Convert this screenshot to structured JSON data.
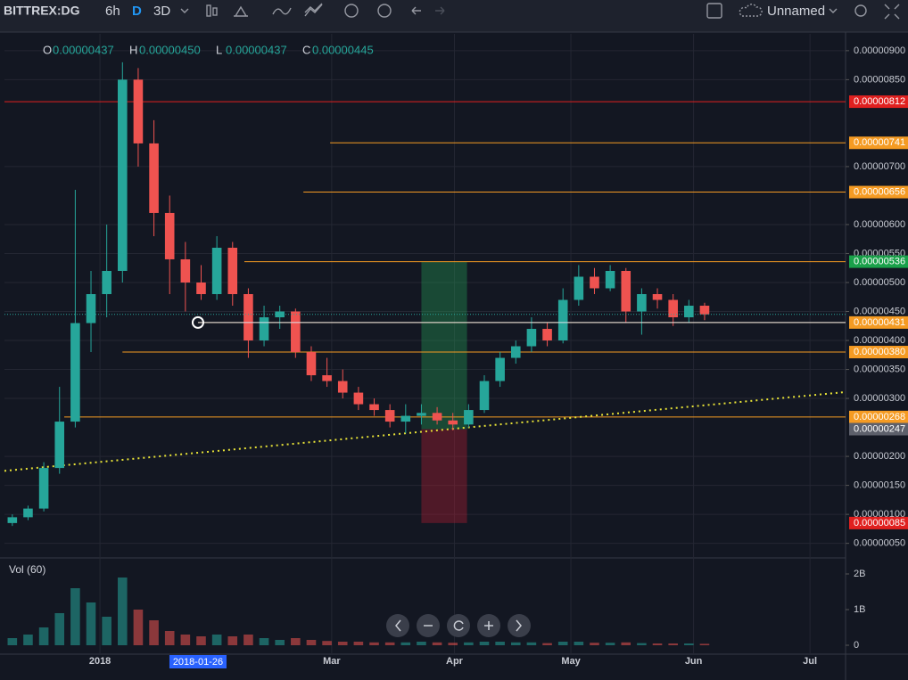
{
  "toolbar": {
    "symbol": "BITTREX:DG",
    "intervals": [
      "6h",
      "D",
      "3D"
    ],
    "layout_name": "Unnamed"
  },
  "chart_data": {
    "type": "candlestick",
    "ohlc_legend": [
      {
        "key": "O",
        "value": "0.00000437"
      },
      {
        "key": "H",
        "value": "0.00000450"
      },
      {
        "key": "L",
        "value": "0.00000437"
      },
      {
        "key": "C",
        "value": "0.00000445"
      }
    ],
    "ohlc": [
      [
        8.5e-07,
        1e-06,
        8e-07,
        9.5e-07
      ],
      [
        9.5e-07,
        1.15e-06,
        9e-07,
        1.1e-06
      ],
      [
        1.1e-06,
        1.9e-06,
        1.05e-06,
        1.8e-06
      ],
      [
        1.8e-06,
        3.2e-06,
        1.7e-06,
        2.6e-06
      ],
      [
        2.6e-06,
        6.6e-06,
        2.5e-06,
        4.3e-06
      ],
      [
        4.3e-06,
        5.2e-06,
        3.8e-06,
        4.8e-06
      ],
      [
        4.8e-06,
        6e-06,
        4.4e-06,
        5.2e-06
      ],
      [
        5.2e-06,
        8.8e-06,
        5e-06,
        8.5e-06
      ],
      [
        8.5e-06,
        8.7e-06,
        7e-06,
        7.4e-06
      ],
      [
        7.4e-06,
        7.8e-06,
        5.8e-06,
        6.2e-06
      ],
      [
        6.2e-06,
        6.5e-06,
        4.8e-06,
        5.4e-06
      ],
      [
        5.4e-06,
        5.7e-06,
        4.5e-06,
        5e-06
      ],
      [
        5e-06,
        5.3e-06,
        4.7e-06,
        4.8e-06
      ],
      [
        4.8e-06,
        5.8e-06,
        4.7e-06,
        5.6e-06
      ],
      [
        5.6e-06,
        5.7e-06,
        4.6e-06,
        4.8e-06
      ],
      [
        4.8e-06,
        4.9e-06,
        3.7e-06,
        4e-06
      ],
      [
        4e-06,
        4.6e-06,
        3.9e-06,
        4.4e-06
      ],
      [
        4.4e-06,
        4.6e-06,
        4.2e-06,
        4.5e-06
      ],
      [
        4.5e-06,
        4.55e-06,
        3.7e-06,
        3.8e-06
      ],
      [
        3.8e-06,
        3.9e-06,
        3.3e-06,
        3.4e-06
      ],
      [
        3.4e-06,
        3.7e-06,
        3.2e-06,
        3.3e-06
      ],
      [
        3.3e-06,
        3.5e-06,
        3e-06,
        3.1e-06
      ],
      [
        3.1e-06,
        3.2e-06,
        2.8e-06,
        2.9e-06
      ],
      [
        2.9e-06,
        3e-06,
        2.7e-06,
        2.8e-06
      ],
      [
        2.8e-06,
        2.9e-06,
        2.5e-06,
        2.6e-06
      ],
      [
        2.6e-06,
        2.9e-06,
        2.4e-06,
        2.7e-06
      ],
      [
        2.7e-06,
        2.9e-06,
        2.55e-06,
        2.75e-06
      ],
      [
        2.75e-06,
        2.85e-06,
        2.55e-06,
        2.62e-06
      ],
      [
        2.62e-06,
        2.75e-06,
        2.45e-06,
        2.55e-06
      ],
      [
        2.55e-06,
        2.9e-06,
        2.5e-06,
        2.8e-06
      ],
      [
        2.8e-06,
        3.4e-06,
        2.75e-06,
        3.3e-06
      ],
      [
        3.3e-06,
        3.8e-06,
        3.2e-06,
        3.7e-06
      ],
      [
        3.7e-06,
        4e-06,
        3.6e-06,
        3.9e-06
      ],
      [
        3.9e-06,
        4.4e-06,
        3.8e-06,
        4.2e-06
      ],
      [
        4.2e-06,
        4.3e-06,
        3.9e-06,
        4e-06
      ],
      [
        4e-06,
        4.9e-06,
        3.95e-06,
        4.7e-06
      ],
      [
        4.7e-06,
        5.3e-06,
        4.6e-06,
        5.1e-06
      ],
      [
        5.1e-06,
        5.25e-06,
        4.8e-06,
        4.9e-06
      ],
      [
        4.9e-06,
        5.3e-06,
        4.85e-06,
        5.2e-06
      ],
      [
        5.2e-06,
        5.25e-06,
        4.3e-06,
        4.5e-06
      ],
      [
        4.5e-06,
        4.9e-06,
        4.1e-06,
        4.8e-06
      ],
      [
        4.8e-06,
        4.9e-06,
        4.55e-06,
        4.7e-06
      ],
      [
        4.7e-06,
        4.8e-06,
        4.25e-06,
        4.4e-06
      ],
      [
        4.4e-06,
        4.7e-06,
        4.3e-06,
        4.6e-06
      ],
      [
        4.6e-06,
        4.65e-06,
        4.35e-06,
        4.45e-06
      ]
    ],
    "volume_label": "Vol (60)",
    "volume": [
      200000000,
      300000000,
      500000000,
      900000000,
      1600000000,
      1200000000,
      800000000,
      1900000000,
      1000000000,
      700000000,
      400000000,
      300000000,
      250000000,
      300000000,
      250000000,
      300000000,
      200000000,
      150000000,
      200000000,
      150000000,
      120000000,
      100000000,
      100000000,
      80000000,
      80000000,
      80000000,
      100000000,
      80000000,
      70000000,
      80000000,
      100000000,
      100000000,
      80000000,
      80000000,
      60000000,
      100000000,
      100000000,
      70000000,
      70000000,
      80000000,
      60000000,
      50000000,
      50000000,
      50000000,
      40000000
    ],
    "up_color": "#26a69a",
    "down_color": "#ef5350",
    "xlim": [
      0,
      53.46
    ],
    "xticks": [
      {
        "value": 6.07,
        "label": "2018"
      },
      {
        "value": 20.8,
        "label": "Mar"
      },
      {
        "value": 28.6,
        "label": "Apr"
      },
      {
        "value": 36.0,
        "label": "May"
      },
      {
        "value": 43.8,
        "label": "Jun"
      },
      {
        "value": 51.2,
        "label": "Jul"
      }
    ],
    "ylim": [
      3.1e-07,
      9.29e-06
    ],
    "yticks": [
      {
        "value": 9e-06,
        "label": "0.00000900"
      },
      {
        "value": 8.5e-06,
        "label": "0.00000850"
      },
      {
        "value": 7e-06,
        "label": "0.00000700"
      },
      {
        "value": 6e-06,
        "label": "0.00000600"
      },
      {
        "value": 5.5e-06,
        "label": "0.00000550"
      },
      {
        "value": 5e-06,
        "label": "0.00000500"
      },
      {
        "value": 4.5e-06,
        "label": "0.00000450"
      },
      {
        "value": 4e-06,
        "label": "0.00000400"
      },
      {
        "value": 3.5e-06,
        "label": "0.00000350"
      },
      {
        "value": 3e-06,
        "label": "0.00000300"
      },
      {
        "value": 2e-06,
        "label": "0.00000200"
      },
      {
        "value": 1.5e-06,
        "label": "0.00000150"
      },
      {
        "value": 1e-06,
        "label": "0.00000100"
      },
      {
        "value": 5e-07,
        "label": "0.00000050"
      }
    ],
    "vlim": [
      0,
      2350000000
    ],
    "vticks": [
      {
        "value": 2000000000,
        "label": "2B"
      },
      {
        "value": 1000000000,
        "label": "1B"
      },
      0
    ],
    "grid": true,
    "levels": [
      {
        "value": 8.12e-06,
        "label": "0.00000812",
        "color": "#e0201f",
        "from": 0
      },
      {
        "value": 7.41e-06,
        "label": "0.00000741",
        "color": "#f59b23",
        "from": 20.7
      },
      {
        "value": 6.56e-06,
        "label": "0.00000656",
        "color": "#f59b23",
        "from": 19.0
      },
      {
        "value": 5.36e-06,
        "color": "#f59b23",
        "from": 15.25
      },
      {
        "value": 4.31e-06,
        "label": "0.00000431",
        "color": "#f59b23",
        "from": 12.3
      },
      {
        "value": 3.8e-06,
        "label": "0.00000380",
        "color": "#f59b23",
        "from": 7.5
      },
      {
        "value": 2.68e-06,
        "label": "0.00000268",
        "color": "#f59b23",
        "from": 3.8
      }
    ],
    "position": {
      "from": 26.5,
      "to": 29.4,
      "target": 5.36e-06,
      "target_label": "0.00000536",
      "entry": 2.47e-06,
      "entry_label": "0.00000247",
      "stop": 8.5e-07,
      "stop_label": "0.00000085"
    },
    "trendline": {
      "x": [
        0,
        53.46
      ],
      "y": [
        1.75e-06,
        3.11e-06
      ],
      "color": "#e8e337"
    },
    "crosshair": {
      "x": 12.3,
      "y": 4.31e-06,
      "label": "2018-01-26"
    }
  }
}
